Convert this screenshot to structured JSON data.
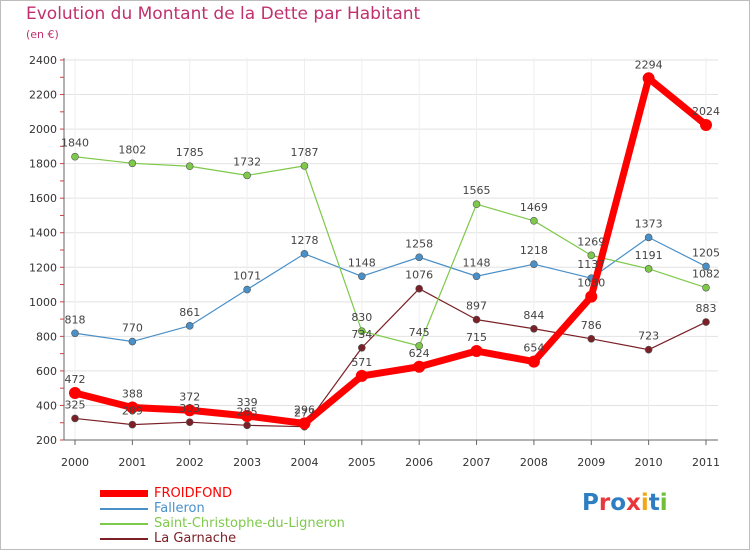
{
  "title": "Evolution du Montant de la Dette par Habitant",
  "unit": "(en €)",
  "logo": {
    "text": "Proxiti",
    "letters": [
      {
        "ch": "P",
        "color": "#2d7fc1"
      },
      {
        "ch": "r",
        "color": "#e8383d"
      },
      {
        "ch": "o",
        "color": "#2d7fc1"
      },
      {
        "ch": "x",
        "color": "#e8383d"
      },
      {
        "ch": "i",
        "color": "#f2a71b"
      },
      {
        "ch": "t",
        "color": "#2d7fc1"
      },
      {
        "ch": "i",
        "color": "#6fbf3a"
      }
    ]
  },
  "chart_data": {
    "type": "line",
    "title": "Evolution du Montant de la Dette par Habitant",
    "ylabel": "(en €)",
    "xlabel": "",
    "x": [
      "2000",
      "2001",
      "2002",
      "2003",
      "2004",
      "2005",
      "2006",
      "2007",
      "2008",
      "2009",
      "2010",
      "2011"
    ],
    "ylim": [
      200,
      2400
    ],
    "yticks": [
      200,
      400,
      600,
      800,
      1000,
      1200,
      1400,
      1600,
      1800,
      2000,
      2200,
      2400
    ],
    "grid": true,
    "legend_position": "bottom-left",
    "series": [
      {
        "name": "FROIDFOND",
        "color": "#ff0000",
        "width": 7,
        "values": [
          472,
          388,
          372,
          339,
          296,
          571,
          624,
          715,
          654,
          1030,
          2294,
          2024
        ]
      },
      {
        "name": "Falleron",
        "color": "#4a90c8",
        "width": 1.2,
        "values": [
          818,
          770,
          861,
          1071,
          1278,
          1148,
          1258,
          1148,
          1218,
          1137,
          1373,
          1205
        ]
      },
      {
        "name": "Saint-Christophe-du-Ligneron",
        "color": "#7ec94a",
        "width": 1.2,
        "values": [
          1840,
          1802,
          1785,
          1732,
          1787,
          830,
          745,
          1565,
          1469,
          1269,
          1191,
          1082
        ]
      },
      {
        "name": "La Garnache",
        "color": "#7b2026",
        "width": 1.2,
        "values": [
          325,
          289,
          303,
          285,
          277,
          734,
          1076,
          897,
          844,
          786,
          723,
          883
        ]
      }
    ]
  }
}
